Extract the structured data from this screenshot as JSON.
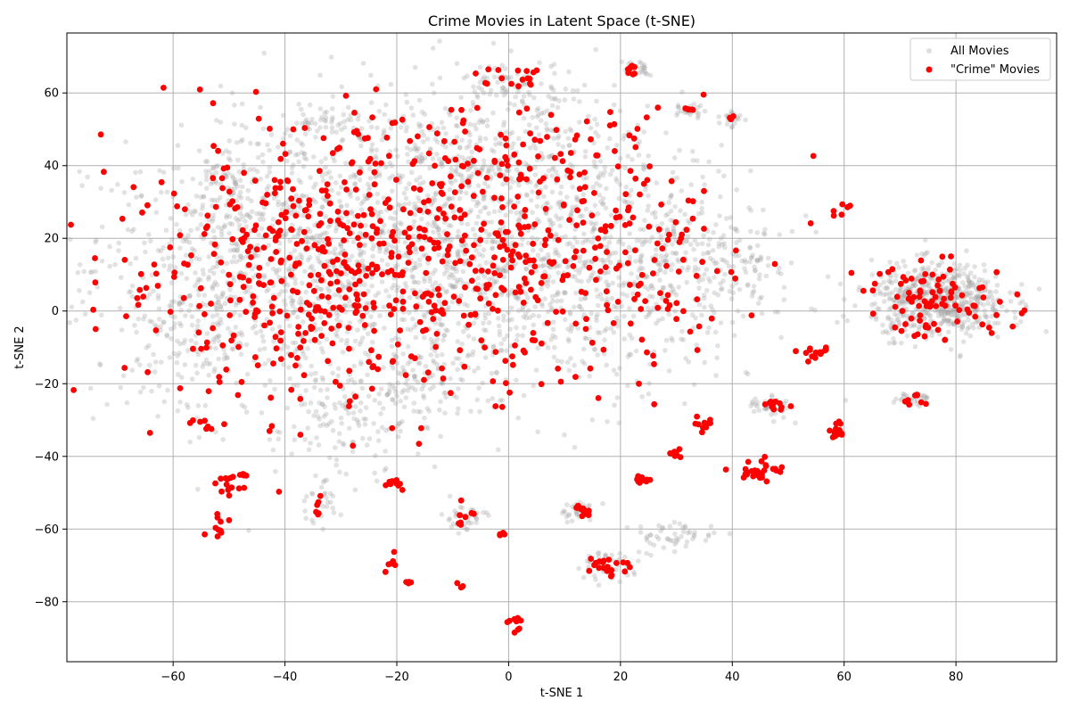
{
  "chart_data": {
    "type": "scatter",
    "title": "Crime Movies in Latent Space (t-SNE)",
    "xlabel": "t-SNE 1",
    "ylabel": "t-SNE 2",
    "xlim": [
      -79,
      98
    ],
    "ylim": [
      -96.5,
      76.5
    ],
    "x_ticks": [
      -60,
      -40,
      -20,
      0,
      20,
      40,
      60,
      80
    ],
    "y_ticks": [
      -80,
      -60,
      -40,
      -20,
      0,
      20,
      40,
      60
    ],
    "x_tick_labels": [
      "−60",
      "−40",
      "−20",
      "0",
      "20",
      "40",
      "60",
      "80"
    ],
    "y_tick_labels": [
      "−80",
      "−60",
      "−40",
      "−20",
      "0",
      "20",
      "40",
      "60"
    ],
    "grid": true,
    "legend_position": "top-right",
    "series": [
      {
        "name": "All Movies",
        "color": "#a0a0a0",
        "alpha": 0.3,
        "clusters": [
          {
            "cx": -35,
            "cy": 12,
            "sx": 20,
            "sy": 18,
            "n": 1000
          },
          {
            "cx": -5,
            "cy": 20,
            "sx": 18,
            "sy": 20,
            "n": 700
          },
          {
            "cx": 15,
            "cy": 10,
            "sx": 16,
            "sy": 16,
            "n": 500
          },
          {
            "cx": -10,
            "cy": 45,
            "sx": 20,
            "sy": 8,
            "n": 250
          },
          {
            "cx": 77,
            "cy": 3,
            "sx": 6,
            "sy": 5,
            "n": 600
          },
          {
            "cx": -55,
            "cy": 0,
            "sx": 8,
            "sy": 15,
            "n": 200
          },
          {
            "cx": 35,
            "cy": 15,
            "sx": 8,
            "sy": 10,
            "n": 150
          },
          {
            "cx": -30,
            "cy": -30,
            "sx": 6,
            "sy": 8,
            "n": 120
          },
          {
            "cx": -15,
            "cy": -20,
            "sx": 5,
            "sy": 6,
            "n": 80
          },
          {
            "cx": 2,
            "cy": 62,
            "sx": 6,
            "sy": 3,
            "n": 80
          },
          {
            "cx": 30,
            "cy": -62,
            "sx": 4,
            "sy": 2,
            "n": 50
          },
          {
            "cx": 18,
            "cy": -70,
            "sx": 3,
            "sy": 2,
            "n": 50
          },
          {
            "cx": -50,
            "cy": 36,
            "sx": 3,
            "sy": 3,
            "n": 50
          },
          {
            "cx": -33,
            "cy": 52,
            "sx": 3,
            "sy": 2,
            "n": 40
          },
          {
            "cx": 47,
            "cy": -26,
            "sx": 2,
            "sy": 1.5,
            "n": 40
          },
          {
            "cx": 32,
            "cy": 55,
            "sx": 1.5,
            "sy": 1,
            "n": 25
          },
          {
            "cx": 40,
            "cy": 53,
            "sx": 1,
            "sy": 1.5,
            "n": 20
          },
          {
            "cx": 23,
            "cy": 67,
            "sx": 1.5,
            "sy": 1,
            "n": 25
          },
          {
            "cx": 72,
            "cy": -24,
            "sx": 1.5,
            "sy": 1,
            "n": 30
          },
          {
            "cx": -8,
            "cy": -57,
            "sx": 2,
            "sy": 2,
            "n": 40
          },
          {
            "cx": 12,
            "cy": -55,
            "sx": 2,
            "sy": 1.5,
            "n": 30
          },
          {
            "cx": -34,
            "cy": -53,
            "sx": 2,
            "sy": 3,
            "n": 30
          }
        ]
      },
      {
        "name": "\"Crime\" Movies",
        "color": "#ff0000",
        "alpha": 1.0,
        "clusters": [
          {
            "cx": -35,
            "cy": 10,
            "sx": 18,
            "sy": 18,
            "n": 420
          },
          {
            "cx": -3,
            "cy": 18,
            "sx": 16,
            "sy": 18,
            "n": 220
          },
          {
            "cx": 18,
            "cy": 10,
            "sx": 14,
            "sy": 15,
            "n": 130
          },
          {
            "cx": -10,
            "cy": 42,
            "sx": 18,
            "sy": 8,
            "n": 70
          },
          {
            "cx": 77,
            "cy": 3,
            "sx": 7,
            "sy": 5,
            "n": 90
          },
          {
            "cx": -50,
            "cy": -48,
            "sx": 1.2,
            "sy": 2,
            "n": 12
          },
          {
            "cx": -52,
            "cy": -59,
            "sx": 1.2,
            "sy": 2,
            "n": 10
          },
          {
            "cx": 45,
            "cy": -44,
            "sx": 2,
            "sy": 1.5,
            "n": 30
          },
          {
            "cx": 24,
            "cy": -46,
            "sx": 0.6,
            "sy": 0.8,
            "n": 15
          },
          {
            "cx": 18,
            "cy": -70,
            "sx": 2,
            "sy": 1.5,
            "n": 20
          },
          {
            "cx": 13,
            "cy": -55,
            "sx": 1,
            "sy": 1,
            "n": 15
          },
          {
            "cx": 59,
            "cy": -33,
            "sx": 0.8,
            "sy": 1.2,
            "n": 15
          },
          {
            "cx": 55,
            "cy": -12,
            "sx": 1.2,
            "sy": 0.8,
            "n": 15
          },
          {
            "cx": 48,
            "cy": -26,
            "sx": 1,
            "sy": 0.8,
            "n": 12
          },
          {
            "cx": 35,
            "cy": -31,
            "sx": 1.2,
            "sy": 0.8,
            "n": 10
          },
          {
            "cx": 30,
            "cy": -40,
            "sx": 0.6,
            "sy": 0.8,
            "n": 8
          },
          {
            "cx": 1,
            "cy": -85,
            "sx": 0.8,
            "sy": 0.5,
            "n": 8
          },
          {
            "cx": 2,
            "cy": 64,
            "sx": 3,
            "sy": 1.5,
            "n": 15
          },
          {
            "cx": 22,
            "cy": 66,
            "sx": 1,
            "sy": 1,
            "n": 8
          },
          {
            "cx": 32,
            "cy": 55.5,
            "sx": 0.8,
            "sy": 0.3,
            "n": 6
          },
          {
            "cx": 40,
            "cy": 53.5,
            "sx": 0.3,
            "sy": 0.3,
            "n": 3
          },
          {
            "cx": -20,
            "cy": -48,
            "sx": 1.5,
            "sy": 1,
            "n": 10
          },
          {
            "cx": -8,
            "cy": -56,
            "sx": 1,
            "sy": 1.5,
            "n": 8
          },
          {
            "cx": -34,
            "cy": -55,
            "sx": 0.5,
            "sy": 1,
            "n": 5
          },
          {
            "cx": 72,
            "cy": -24,
            "sx": 1.5,
            "sy": 1,
            "n": 8
          },
          {
            "cx": 59,
            "cy": 29,
            "sx": 1,
            "sy": 2,
            "n": 6
          },
          {
            "cx": -21,
            "cy": -69,
            "sx": 0.8,
            "sy": 2,
            "n": 6
          },
          {
            "cx": -18,
            "cy": -75,
            "sx": 0.5,
            "sy": 0.5,
            "n": 4
          },
          {
            "cx": -8,
            "cy": -75.5,
            "sx": 0.5,
            "sy": 0.5,
            "n": 3
          },
          {
            "cx": -1,
            "cy": -61.5,
            "sx": 0.5,
            "sy": 0.3,
            "n": 4
          },
          {
            "cx": 2,
            "cy": -88,
            "sx": 0.3,
            "sy": 0.5,
            "n": 3
          },
          {
            "cx": -54,
            "cy": -31,
            "sx": 1.5,
            "sy": 1,
            "n": 8
          },
          {
            "cx": -48,
            "cy": -45,
            "sx": 1,
            "sy": 0.5,
            "n": 6
          }
        ]
      }
    ]
  }
}
